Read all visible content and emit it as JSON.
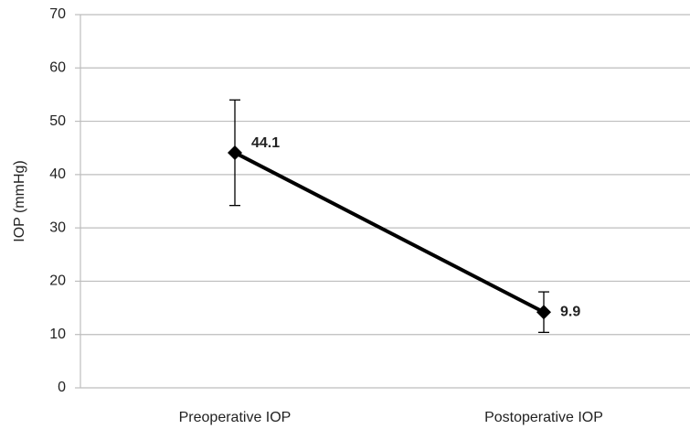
{
  "chart_data": {
    "type": "line",
    "y_label": "IOP (mmHg)",
    "categories": [
      "Preoperative IOP",
      "Postoperative IOP"
    ],
    "values": [
      44.1,
      14.2
    ],
    "errors": [
      9.9,
      3.8
    ],
    "annotations": [
      "44.1",
      "9.9"
    ],
    "color": "#000000",
    "ylim": [
      0,
      70
    ],
    "yticks": [
      0,
      10,
      20,
      30,
      40,
      50,
      60,
      70
    ],
    "grid": true
  }
}
